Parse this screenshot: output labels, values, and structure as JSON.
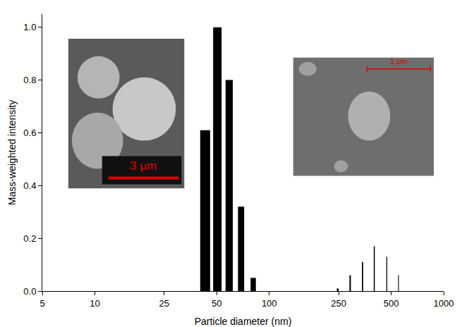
{
  "chart_data": {
    "type": "bar",
    "x_label": "Particle diameter (nm)",
    "y_label": "Mass-weighted intensity",
    "x": [
      43,
      50.5,
      59,
      69,
      81,
      247,
      291,
      343,
      400,
      472,
      551
    ],
    "values": [
      0.61,
      1.0,
      0.8,
      0.32,
      0.05,
      0.01,
      0.06,
      0.11,
      0.17,
      0.13,
      0.06
    ],
    "color": "#000000",
    "log": "x",
    "grid": false,
    "xlim": [
      5,
      1000
    ],
    "xticks": [
      5,
      10,
      25,
      50,
      100,
      250,
      500,
      1000
    ],
    "ylim": [
      0,
      1.05
    ],
    "yticks": [
      {
        "value": 0,
        "label": "0.0"
      },
      {
        "value": 0.2,
        "label": "0.2"
      },
      {
        "value": 0.4,
        "label": "0.4"
      },
      {
        "value": 0.6,
        "label": "0.6"
      },
      {
        "value": 0.8,
        "label": "0.8"
      },
      {
        "value": 1.0,
        "label": "1.0"
      }
    ],
    "annotations": [
      "3 μm",
      "1 μm"
    ]
  }
}
